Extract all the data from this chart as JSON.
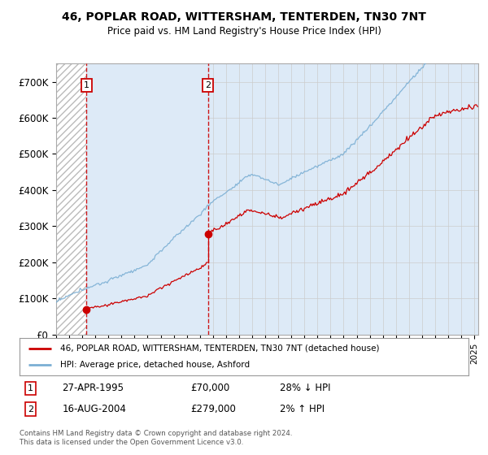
{
  "title": "46, POPLAR ROAD, WITTERSHAM, TENTERDEN, TN30 7NT",
  "subtitle": "Price paid vs. HM Land Registry's House Price Index (HPI)",
  "ylim": [
    0,
    750000
  ],
  "yticks": [
    0,
    100000,
    200000,
    300000,
    400000,
    500000,
    600000,
    700000
  ],
  "ytick_labels": [
    "£0",
    "£100K",
    "£200K",
    "£300K",
    "£400K",
    "£500K",
    "£600K",
    "£700K"
  ],
  "sale1_date": 1995.32,
  "sale1_price": 70000,
  "sale2_date": 2004.62,
  "sale2_price": 279000,
  "hpi_color": "#7bafd4",
  "price_color": "#cc0000",
  "legend_line1": "46, POPLAR ROAD, WITTERSHAM, TENTERDEN, TN30 7NT (detached house)",
  "legend_line2": "HPI: Average price, detached house, Ashford",
  "annotation1_label": "1",
  "annotation1_date": "27-APR-1995",
  "annotation1_price": "£70,000",
  "annotation1_hpi": "28% ↓ HPI",
  "annotation2_label": "2",
  "annotation2_date": "16-AUG-2004",
  "annotation2_price": "£279,000",
  "annotation2_hpi": "2% ↑ HPI",
  "footnote": "Contains HM Land Registry data © Crown copyright and database right 2024.\nThis data is licensed under the Open Government Licence v3.0.",
  "bg_color": "#ddeaf7",
  "grid_color": "#cccccc",
  "hatch_color": "#bbbbbb",
  "xlim_start": 1993,
  "xlim_end": 2025.3
}
